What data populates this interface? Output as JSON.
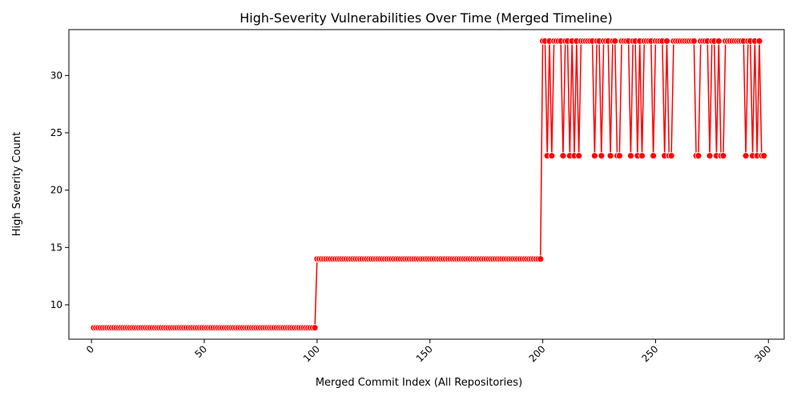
{
  "chart_data": {
    "type": "line",
    "title": "High-Severity Vulnerabilities Over Time (Merged Timeline)",
    "xlabel": "Merged Commit Index (All Repositories)",
    "ylabel": "High Severity Count",
    "xlim": [
      -10,
      307
    ],
    "ylim": [
      7,
      34
    ],
    "xticks": [
      0,
      50,
      100,
      150,
      200,
      250,
      300
    ],
    "yticks": [
      10,
      15,
      20,
      25,
      30
    ],
    "xtick_rotation": 45,
    "grid": false,
    "legend": "none",
    "line_color": "#ff0000",
    "marker_color": "#ff0000",
    "marker_edge": "#ffffff",
    "segments": [
      {
        "x_start": 1,
        "x_end": 99,
        "value": 8
      },
      {
        "x_start": 100,
        "x_end": 199,
        "value": 14
      }
    ],
    "phase3": {
      "x_start": 200,
      "values": [
        33,
        33,
        23,
        33,
        23,
        33,
        33,
        33,
        33,
        23,
        33,
        33,
        23,
        33,
        23,
        33,
        23,
        33,
        33,
        33,
        33,
        33,
        33,
        23,
        33,
        33,
        23,
        33,
        33,
        33,
        23,
        33,
        33,
        23,
        23,
        33,
        33,
        33,
        33,
        23,
        33,
        33,
        23,
        33,
        23,
        33,
        33,
        33,
        33,
        23,
        33,
        33,
        33,
        33,
        23,
        33,
        23,
        23,
        33,
        33,
        33,
        33,
        33,
        33,
        33,
        33,
        33,
        33,
        23,
        23,
        33,
        33,
        33,
        33,
        23,
        33,
        33,
        23,
        33,
        23,
        23,
        33,
        33,
        33,
        33,
        33,
        33,
        33,
        33,
        33,
        23,
        33,
        33,
        23,
        33,
        23,
        33,
        23,
        23
      ]
    }
  }
}
